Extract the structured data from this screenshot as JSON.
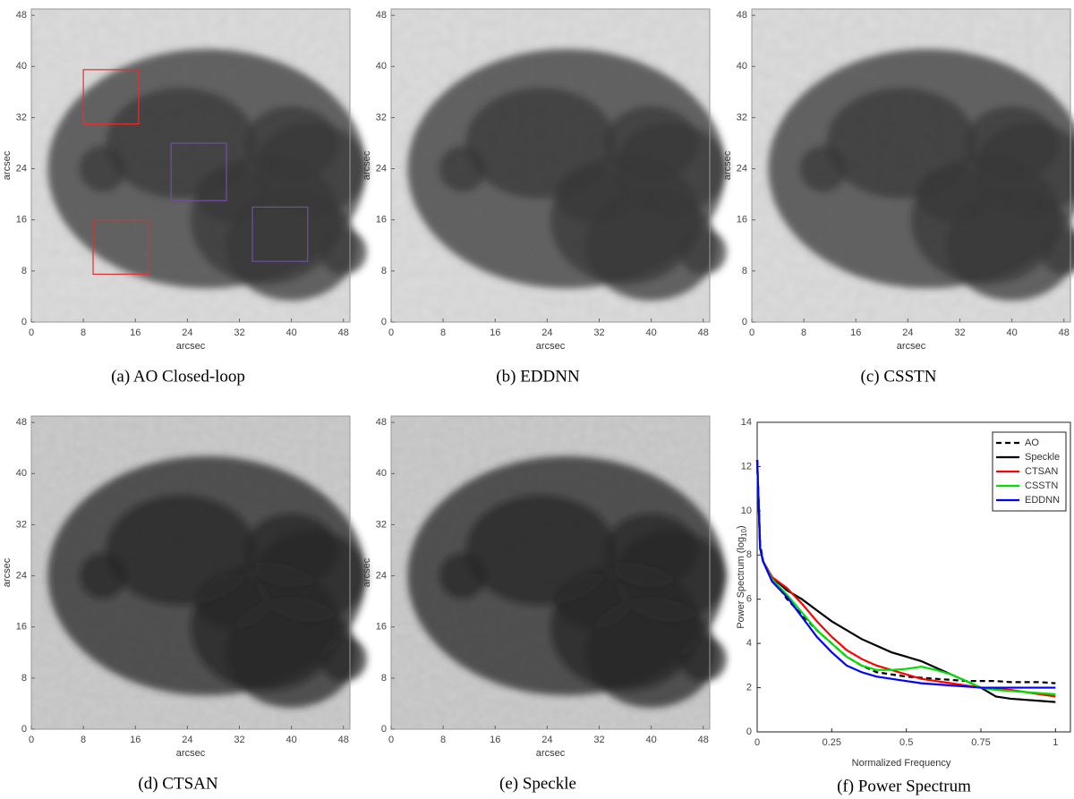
{
  "image_axes": {
    "xlabel": "arcsec",
    "ylabel": "arcsec",
    "xlim": [
      0,
      49
    ],
    "ylim": [
      0,
      49
    ],
    "xticks": [
      0,
      8,
      16,
      24,
      32,
      40,
      48
    ],
    "yticks": [
      0,
      8,
      16,
      24,
      32,
      40,
      48
    ]
  },
  "panels": [
    {
      "caption": "(a)  AO Closed-loop"
    },
    {
      "caption": "(b)  EDDNN"
    },
    {
      "caption": "(c)  CSSTN"
    },
    {
      "caption": "(d)  CTSAN"
    },
    {
      "caption": "(e)  Speckle"
    }
  ],
  "chart_data": {
    "type": "line",
    "caption": "(f)  Power Spectrum",
    "xlabel": "Normalized Frequency",
    "ylabel": [
      "Power Spectrum (log",
      "10",
      ")"
    ],
    "xlim": [
      0,
      1.05
    ],
    "ylim": [
      0,
      14
    ],
    "xticks": [
      0,
      0.25,
      0.5,
      0.75,
      1
    ],
    "yticks": [
      0,
      2,
      4,
      6,
      8,
      10,
      12,
      14
    ],
    "legend": "upper right",
    "x": [
      0,
      0.01,
      0.02,
      0.05,
      0.1,
      0.15,
      0.2,
      0.25,
      0.3,
      0.35,
      0.4,
      0.45,
      0.5,
      0.55,
      0.6,
      0.65,
      0.7,
      0.75,
      0.8,
      0.85,
      0.9,
      0.95,
      1.0
    ],
    "series": [
      {
        "name": "AO",
        "color": "#000000",
        "dashed": true,
        "values": [
          12.3,
          8.5,
          7.7,
          7.0,
          6.0,
          5.3,
          4.6,
          4.0,
          3.4,
          3.0,
          2.7,
          2.6,
          2.5,
          2.45,
          2.4,
          2.35,
          2.3,
          2.3,
          2.3,
          2.25,
          2.25,
          2.25,
          2.2
        ]
      },
      {
        "name": "Speckle",
        "color": "#000000",
        "dashed": false,
        "values": [
          12.3,
          8.3,
          7.7,
          7.0,
          6.4,
          6.0,
          5.5,
          5.0,
          4.6,
          4.2,
          3.9,
          3.6,
          3.4,
          3.2,
          2.9,
          2.6,
          2.3,
          2.0,
          1.6,
          1.5,
          1.45,
          1.4,
          1.35
        ]
      },
      {
        "name": "CTSAN",
        "color": "#ff0000",
        "dashed": false,
        "values": [
          12.3,
          8.3,
          7.7,
          7.0,
          6.5,
          5.8,
          5.0,
          4.3,
          3.7,
          3.3,
          3.0,
          2.8,
          2.6,
          2.4,
          2.3,
          2.2,
          2.1,
          2.0,
          1.95,
          1.9,
          1.8,
          1.7,
          1.6
        ]
      },
      {
        "name": "CSSTN",
        "color": "#00e000",
        "dashed": false,
        "values": [
          12.3,
          8.3,
          7.7,
          6.9,
          6.2,
          5.4,
          4.6,
          4.0,
          3.4,
          3.0,
          2.8,
          2.8,
          2.85,
          2.95,
          2.8,
          2.6,
          2.3,
          2.0,
          1.9,
          1.85,
          1.8,
          1.75,
          1.7
        ]
      },
      {
        "name": "EDDNN",
        "color": "#0000ff",
        "dashed": false,
        "values": [
          12.3,
          8.3,
          7.7,
          6.8,
          6.1,
          5.2,
          4.3,
          3.6,
          3.0,
          2.7,
          2.5,
          2.4,
          2.3,
          2.2,
          2.15,
          2.1,
          2.05,
          2.0,
          2.0,
          2.0,
          2.0,
          2.0,
          2.0
        ]
      }
    ]
  }
}
